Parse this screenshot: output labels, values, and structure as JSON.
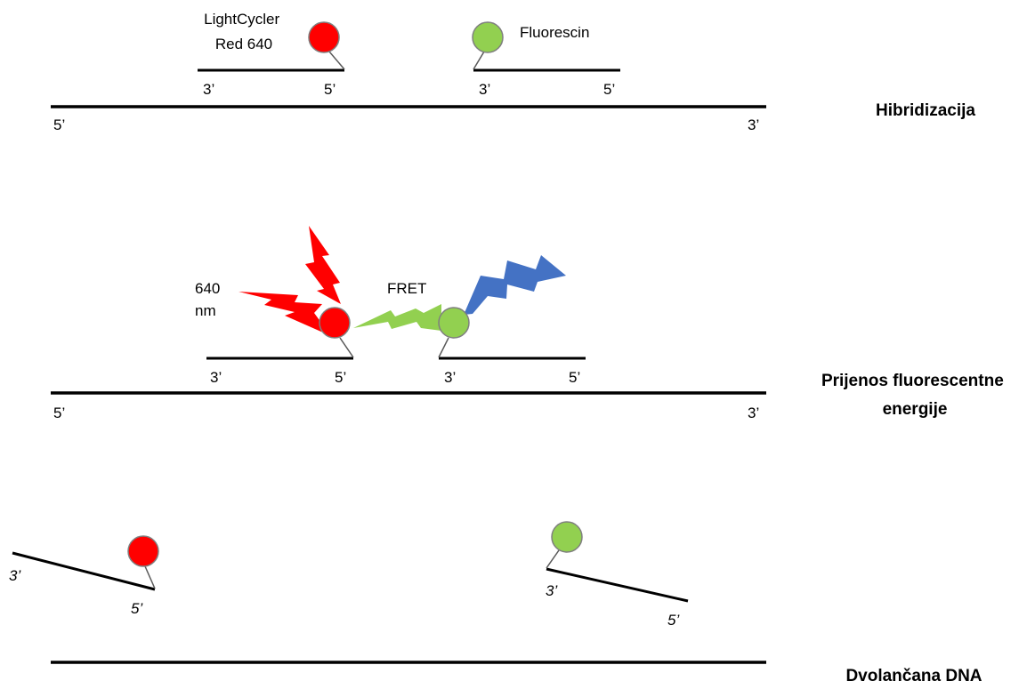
{
  "colors": {
    "acceptor": "#ff0000",
    "donor": "#92d050",
    "excitation": "#4472c4",
    "strand": "#000000",
    "linker": "#595959",
    "circle_outline": "#7f7f7f"
  },
  "panel1": {
    "acceptor_label_line1": "LightCycler",
    "acceptor_label_line2": "Red 640",
    "donor_label": "Fluorescin",
    "probe1_left_end": "3’",
    "probe1_right_end": "5’",
    "probe2_left_end": "3’",
    "probe2_right_end": "5’",
    "template_left_end": "5’",
    "template_right_end": "3’",
    "stage_label": "Hibridizacija"
  },
  "panel2": {
    "emission_label_line1": "640",
    "emission_label_line2": "nm",
    "fret_label": "FRET",
    "probe1_left_end": "3’",
    "probe1_right_end": "5’",
    "probe2_left_end": "3’",
    "probe2_right_end": "5’",
    "template_left_end": "5’",
    "template_right_end": "3’",
    "stage_label_line1": "Prijenos fluorescentne",
    "stage_label_line2": "energije"
  },
  "panel3": {
    "probe1_left_end": "3’",
    "probe1_right_end": "5’",
    "probe2_left_end": "3’",
    "probe2_right_end": "5’",
    "stage_label": "Dvolančana DNA"
  }
}
